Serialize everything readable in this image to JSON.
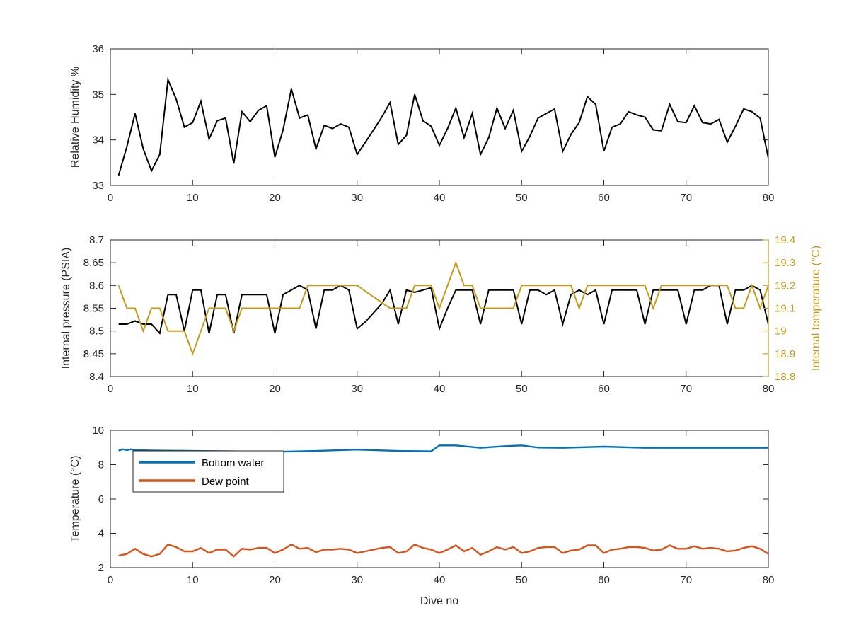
{
  "chart_data": [
    {
      "type": "line",
      "xlabel": "",
      "ylabel": "Relative Humidity %",
      "xlim": [
        0,
        80
      ],
      "ylim": [
        33,
        36
      ],
      "xticks": [
        "0",
        "10",
        "20",
        "30",
        "40",
        "50",
        "60",
        "70",
        "80"
      ],
      "yticks": [
        "33",
        "34",
        "35",
        "36"
      ],
      "grid": false,
      "series": [
        {
          "color": "#000000",
          "x": [
            1,
            2,
            3,
            4,
            5,
            6,
            7,
            8,
            9,
            10,
            11,
            12,
            13,
            14,
            15,
            16,
            17,
            18,
            19,
            20,
            21,
            22,
            23,
            24,
            25,
            26,
            27,
            28,
            29,
            30,
            31,
            32,
            33,
            34,
            35,
            36,
            37,
            38,
            39,
            40,
            41,
            42,
            43,
            44,
            45,
            46,
            47,
            48,
            49,
            50,
            51,
            52,
            53,
            54,
            55,
            56,
            57,
            58,
            59,
            60,
            61,
            62,
            63,
            64,
            65,
            66,
            67,
            68,
            69,
            70,
            71,
            72,
            73,
            74,
            75,
            76,
            77,
            78,
            79,
            80
          ],
          "values": [
            33.22,
            33.85,
            34.58,
            33.8,
            33.32,
            33.68,
            35.32,
            34.9,
            34.28,
            34.38,
            34.85,
            34.02,
            34.42,
            34.48,
            33.48,
            34.62,
            34.4,
            34.65,
            34.75,
            33.62,
            34.22,
            35.12,
            34.48,
            34.55,
            33.8,
            34.32,
            34.25,
            34.35,
            34.28,
            33.68,
            33.95,
            34.22,
            34.5,
            34.82,
            33.9,
            34.1,
            35.0,
            34.42,
            34.3,
            33.88,
            34.25,
            34.7,
            34.05,
            34.58,
            33.68,
            34.05,
            34.7,
            34.25,
            34.65,
            33.75,
            34.08,
            34.48,
            34.58,
            34.68,
            33.75,
            34.12,
            34.38,
            34.95,
            34.78,
            33.75,
            34.28,
            34.35,
            34.62,
            34.55,
            34.5,
            34.22,
            34.2,
            34.78,
            34.4,
            34.38,
            34.75,
            34.38,
            34.35,
            34.45,
            33.95,
            34.3,
            34.68,
            34.62,
            34.48,
            33.6
          ]
        }
      ]
    },
    {
      "type": "line",
      "xlabel": "",
      "ylabel": "Internal pressure (PSIA)",
      "y2label": "Internal temperature (°C)",
      "xlim": [
        0,
        80
      ],
      "ylim": [
        8.4,
        8.7
      ],
      "y2lim": [
        18.8,
        19.4
      ],
      "xticks": [
        "0",
        "10",
        "20",
        "30",
        "40",
        "50",
        "60",
        "70",
        "80"
      ],
      "yticks": [
        "8.4",
        "8.45",
        "8.5",
        "8.55",
        "8.6",
        "8.65",
        "8.7"
      ],
      "y2ticks": [
        "18.8",
        "18.9",
        "19",
        "19.1",
        "19.2",
        "19.3",
        "19.4"
      ],
      "grid": false,
      "series": [
        {
          "axis": "left",
          "color": "#000000",
          "x": [
            1,
            2,
            3,
            4,
            5,
            6,
            7,
            8,
            9,
            10,
            11,
            12,
            13,
            14,
            15,
            16,
            17,
            18,
            19,
            20,
            21,
            22,
            23,
            24,
            25,
            26,
            27,
            28,
            29,
            30,
            31,
            32,
            33,
            34,
            35,
            36,
            37,
            38,
            39,
            40,
            41,
            42,
            43,
            44,
            45,
            46,
            47,
            48,
            49,
            50,
            51,
            52,
            53,
            54,
            55,
            56,
            57,
            58,
            59,
            60,
            61,
            62,
            63,
            64,
            65,
            66,
            67,
            68,
            69,
            70,
            71,
            72,
            73,
            74,
            75,
            76,
            77,
            78,
            79,
            80
          ],
          "values": [
            8.515,
            8.515,
            8.522,
            8.515,
            8.515,
            8.495,
            8.58,
            8.58,
            8.5,
            8.59,
            8.59,
            8.495,
            8.58,
            8.58,
            8.495,
            8.58,
            8.58,
            8.58,
            8.58,
            8.495,
            8.58,
            8.59,
            8.6,
            8.59,
            8.505,
            8.59,
            8.59,
            8.6,
            8.59,
            8.505,
            8.52,
            8.54,
            8.56,
            8.59,
            8.515,
            8.59,
            8.585,
            8.59,
            8.595,
            8.505,
            8.55,
            8.59,
            8.59,
            8.59,
            8.515,
            8.59,
            8.59,
            8.59,
            8.59,
            8.515,
            8.59,
            8.59,
            8.58,
            8.59,
            8.515,
            8.58,
            8.59,
            8.58,
            8.59,
            8.515,
            8.59,
            8.59,
            8.59,
            8.59,
            8.515,
            8.59,
            8.59,
            8.59,
            8.59,
            8.515,
            8.59,
            8.59,
            8.6,
            8.6,
            8.515,
            8.59,
            8.59,
            8.6,
            8.59,
            8.515
          ]
        },
        {
          "axis": "right",
          "color": "#C49A1C",
          "x": [
            1,
            2,
            3,
            4,
            5,
            6,
            7,
            8,
            9,
            10,
            11,
            12,
            13,
            14,
            15,
            16,
            17,
            18,
            19,
            20,
            21,
            22,
            23,
            24,
            25,
            26,
            27,
            28,
            29,
            30,
            31,
            32,
            33,
            34,
            35,
            36,
            37,
            38,
            39,
            40,
            41,
            42,
            43,
            44,
            45,
            46,
            47,
            48,
            49,
            50,
            51,
            52,
            53,
            54,
            55,
            56,
            57,
            58,
            59,
            60,
            61,
            62,
            63,
            64,
            65,
            66,
            67,
            68,
            69,
            70,
            71,
            72,
            73,
            74,
            75,
            76,
            77,
            78,
            79,
            80
          ],
          "values": [
            19.2,
            19.1,
            19.1,
            19.0,
            19.1,
            19.1,
            19.0,
            19.0,
            19.0,
            18.9,
            19.0,
            19.1,
            19.1,
            19.1,
            19.0,
            19.1,
            19.1,
            19.1,
            19.1,
            19.1,
            19.1,
            19.1,
            19.1,
            19.2,
            19.2,
            19.2,
            19.2,
            19.2,
            19.2,
            19.2,
            19.175,
            19.15,
            19.125,
            19.1,
            19.1,
            19.1,
            19.2,
            19.2,
            19.2,
            19.1,
            19.2,
            19.3,
            19.2,
            19.2,
            19.1,
            19.1,
            19.1,
            19.1,
            19.1,
            19.2,
            19.2,
            19.2,
            19.2,
            19.2,
            19.2,
            19.2,
            19.1,
            19.2,
            19.2,
            19.2,
            19.2,
            19.2,
            19.2,
            19.2,
            19.2,
            19.1,
            19.2,
            19.2,
            19.2,
            19.2,
            19.2,
            19.2,
            19.2,
            19.2,
            19.2,
            19.1,
            19.1,
            19.2,
            19.1,
            19.2
          ]
        }
      ]
    },
    {
      "type": "line",
      "xlabel": "Dive no",
      "ylabel": "Temperature (°C)",
      "xlim": [
        0,
        80
      ],
      "ylim": [
        2,
        10
      ],
      "xticks": [
        "0",
        "10",
        "20",
        "30",
        "40",
        "50",
        "60",
        "70",
        "80"
      ],
      "yticks": [
        "2",
        "4",
        "6",
        "8",
        "10"
      ],
      "grid": false,
      "legend": "top-left",
      "series": [
        {
          "name": "Bottom water",
          "color": "#0072BD",
          "x": [
            1,
            1.5,
            2,
            2.5,
            3,
            5,
            10,
            15,
            20,
            25,
            30,
            35,
            39,
            40,
            42,
            45,
            48,
            50,
            52,
            55,
            60,
            65,
            70,
            75,
            80
          ],
          "values": [
            8.82,
            8.9,
            8.85,
            8.9,
            8.85,
            8.83,
            8.8,
            8.78,
            8.75,
            8.8,
            8.88,
            8.8,
            8.78,
            9.12,
            9.12,
            8.98,
            9.08,
            9.12,
            9.0,
            8.98,
            9.05,
            8.98,
            8.98,
            8.98,
            8.98
          ]
        },
        {
          "name": "Dew point",
          "color": "#D95319",
          "x": [
            1,
            2,
            3,
            4,
            5,
            6,
            7,
            8,
            9,
            10,
            11,
            12,
            13,
            14,
            15,
            16,
            17,
            18,
            19,
            20,
            21,
            22,
            23,
            24,
            25,
            26,
            27,
            28,
            29,
            30,
            31,
            32,
            33,
            34,
            35,
            36,
            37,
            38,
            39,
            40,
            41,
            42,
            43,
            44,
            45,
            46,
            47,
            48,
            49,
            50,
            51,
            52,
            53,
            54,
            55,
            56,
            57,
            58,
            59,
            60,
            61,
            62,
            63,
            64,
            65,
            66,
            67,
            68,
            69,
            70,
            71,
            72,
            73,
            74,
            75,
            76,
            77,
            78,
            79,
            80
          ],
          "values": [
            2.7,
            2.8,
            3.1,
            2.8,
            2.65,
            2.8,
            3.35,
            3.2,
            2.95,
            2.95,
            3.15,
            2.85,
            3.05,
            3.05,
            2.65,
            3.1,
            3.05,
            3.15,
            3.15,
            2.85,
            3.05,
            3.35,
            3.1,
            3.15,
            2.9,
            3.05,
            3.05,
            3.1,
            3.05,
            2.85,
            2.95,
            3.05,
            3.15,
            3.2,
            2.85,
            2.95,
            3.35,
            3.15,
            3.05,
            2.85,
            3.05,
            3.3,
            2.95,
            3.15,
            2.75,
            2.95,
            3.2,
            3.05,
            3.2,
            2.85,
            2.95,
            3.15,
            3.2,
            3.2,
            2.85,
            3.0,
            3.05,
            3.3,
            3.3,
            2.85,
            3.05,
            3.1,
            3.2,
            3.2,
            3.15,
            3.0,
            3.05,
            3.3,
            3.1,
            3.1,
            3.25,
            3.1,
            3.15,
            3.1,
            2.95,
            3.0,
            3.15,
            3.25,
            3.1,
            2.8
          ]
        }
      ]
    }
  ]
}
